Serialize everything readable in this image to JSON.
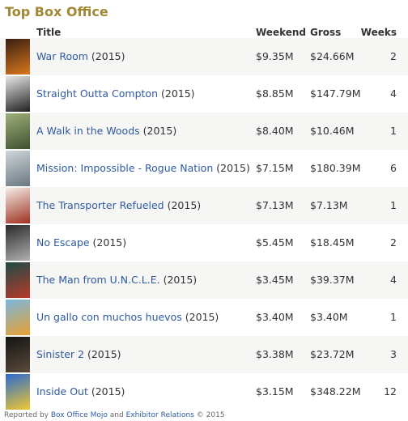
{
  "widget": {
    "heading": "Top Box Office",
    "columns": {
      "title": "Title",
      "weekend": "Weekend",
      "gross": "Gross",
      "weeks": "Weeks"
    },
    "movies": [
      {
        "title": "War Room",
        "year": "(2015)",
        "weekend": "$9.35M",
        "gross": "$24.66M",
        "weeks": "2",
        "poster_colors": [
          "#3a1e10",
          "#d8781e"
        ]
      },
      {
        "title": "Straight Outta Compton",
        "year": "(2015)",
        "weekend": "$8.85M",
        "gross": "$147.79M",
        "weeks": "4",
        "poster_colors": [
          "#e8e8e8",
          "#202020"
        ]
      },
      {
        "title": "A Walk in the Woods",
        "year": "(2015)",
        "weekend": "$8.40M",
        "gross": "$10.46M",
        "weeks": "1",
        "poster_colors": [
          "#9eb07a",
          "#3f5030"
        ]
      },
      {
        "title": "Mission: Impossible - Rogue Nation",
        "year": "(2015)",
        "weekend": "$7.15M",
        "gross": "$180.39M",
        "weeks": "6",
        "poster_colors": [
          "#cfd6da",
          "#6a7880"
        ]
      },
      {
        "title": "The Transporter Refueled",
        "year": "(2015)",
        "weekend": "$7.13M",
        "gross": "$7.13M",
        "weeks": "1",
        "poster_colors": [
          "#f2ede6",
          "#a03020"
        ]
      },
      {
        "title": "No Escape",
        "year": "(2015)",
        "weekend": "$5.45M",
        "gross": "$18.45M",
        "weeks": "2",
        "poster_colors": [
          "#2a2a2a",
          "#b0b0b0"
        ]
      },
      {
        "title": "The Man from U.N.C.L.E.",
        "year": "(2015)",
        "weekend": "$3.45M",
        "gross": "$39.37M",
        "weeks": "4",
        "poster_colors": [
          "#1d4a46",
          "#b83a2a"
        ]
      },
      {
        "title": "Un gallo con muchos huevos",
        "year": "(2015)",
        "weekend": "$3.40M",
        "gross": "$3.40M",
        "weeks": "1",
        "poster_colors": [
          "#7ab8e0",
          "#e8a030"
        ]
      },
      {
        "title": "Sinister 2",
        "year": "(2015)",
        "weekend": "$3.38M",
        "gross": "$23.72M",
        "weeks": "3",
        "poster_colors": [
          "#141414",
          "#5a4a3a"
        ]
      },
      {
        "title": "Inside Out",
        "year": "(2015)",
        "weekend": "$3.15M",
        "gross": "$348.22M",
        "weeks": "12",
        "poster_colors": [
          "#2a6ad0",
          "#f0c830"
        ]
      }
    ],
    "footer": {
      "prefix": "Reported by",
      "source1": "Box Office Mojo",
      "and": "and",
      "source2": "Exhibitor Relations",
      "copyright": "© 2015"
    }
  },
  "colors": {
    "heading": "#a08834",
    "link": "#2f5aa0",
    "row_stripe": "#f6f6f4"
  }
}
